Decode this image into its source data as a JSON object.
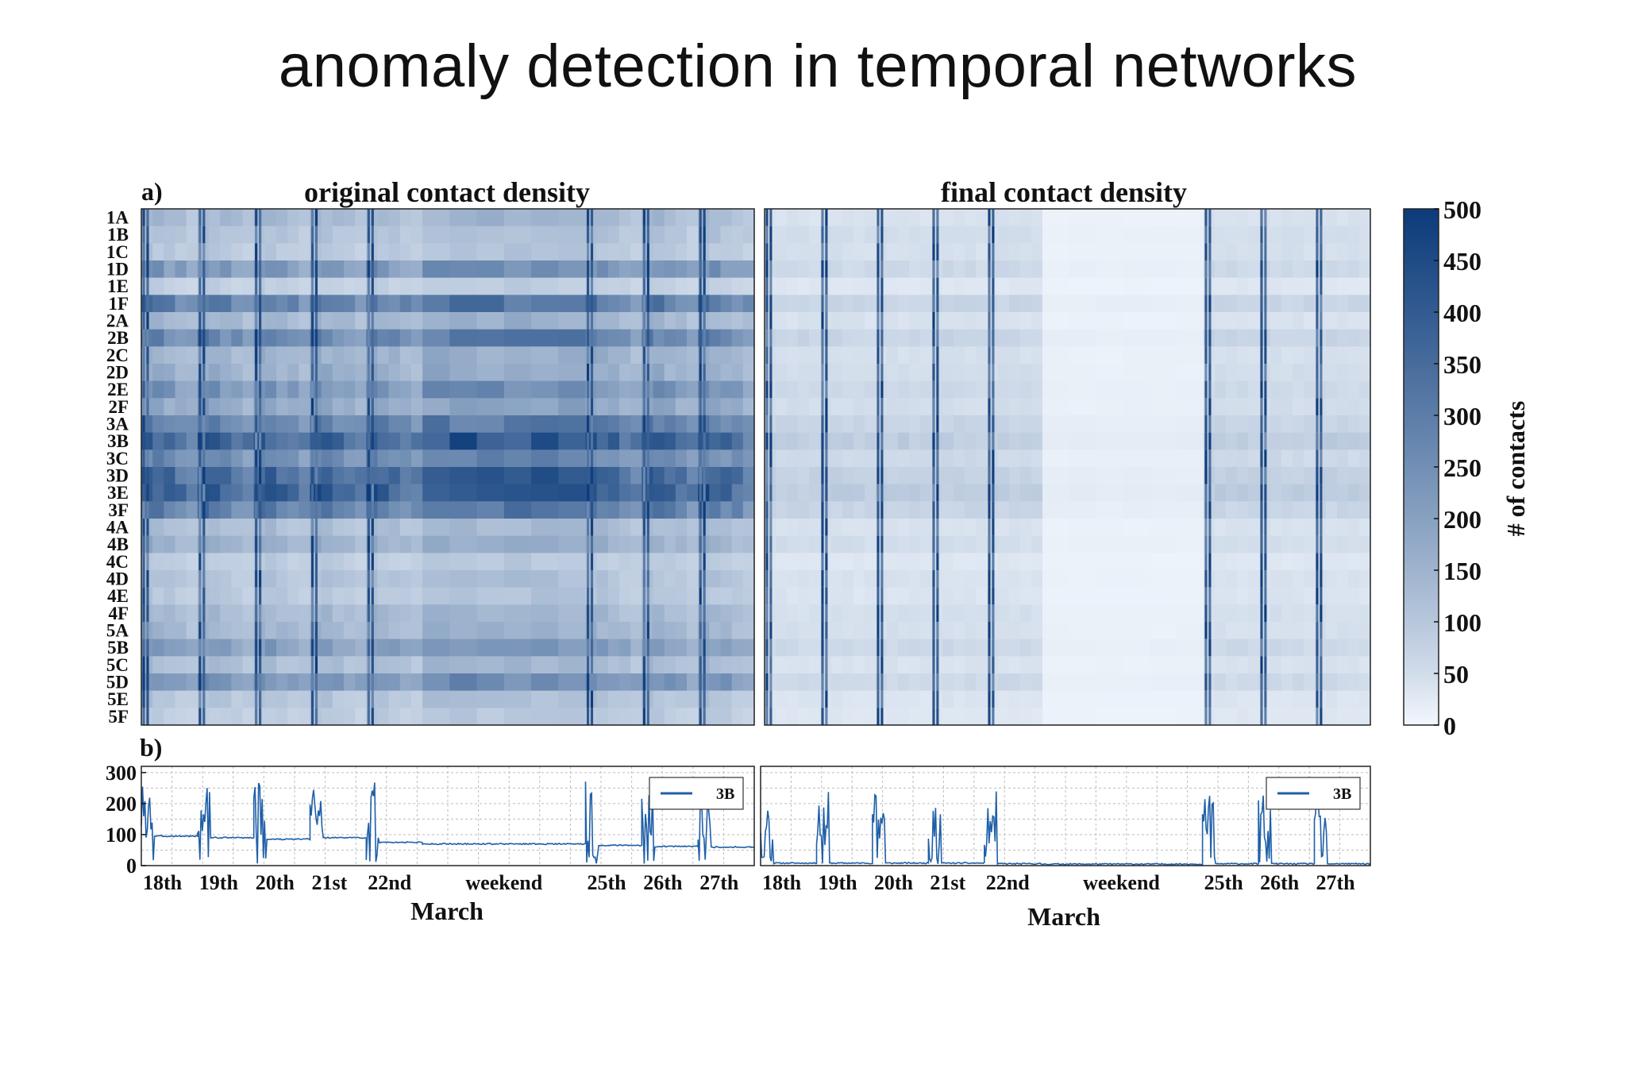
{
  "slide": {
    "title": "anomaly detection in temporal networks"
  },
  "panels": {
    "a_label": "a)",
    "b_label": "b)",
    "left_title": "original contact density",
    "right_title": "final contact density"
  },
  "colors": {
    "scale_low": "#f2f7fd",
    "scale_high": "#0b3b7a",
    "line": "#1f5fa8",
    "grid": "#bdbdbd",
    "frame": "#222222"
  },
  "chart_data": [
    {
      "type": "heatmap",
      "title": "original contact density",
      "rows": [
        "1A",
        "1B",
        "1C",
        "1D",
        "1E",
        "1F",
        "2A",
        "2B",
        "2C",
        "2D",
        "2E",
        "2F",
        "3A",
        "3B",
        "3C",
        "3D",
        "3E",
        "3F",
        "4A",
        "4B",
        "4C",
        "4D",
        "4E",
        "4F",
        "5A",
        "5B",
        "5C",
        "5D",
        "5E",
        "5F"
      ],
      "segments": [
        {
          "label": "18th",
          "kind": "day",
          "span": 1.0
        },
        {
          "label": "19th",
          "kind": "day",
          "span": 1.0
        },
        {
          "label": "20th",
          "kind": "day",
          "span": 1.0
        },
        {
          "label": "21st",
          "kind": "day",
          "span": 1.0
        },
        {
          "label": "22nd",
          "kind": "day",
          "span": 1.0
        },
        {
          "label": "weekend",
          "kind": "weekend",
          "span": 2.9
        },
        {
          "label": "25th",
          "kind": "day",
          "span": 1.0
        },
        {
          "label": "26th",
          "kind": "day",
          "span": 1.0
        },
        {
          "label": "27th",
          "kind": "day",
          "span": 1.0
        }
      ],
      "row_levels": [
        150,
        120,
        110,
        250,
        90,
        330,
        160,
        300,
        170,
        180,
        260,
        200,
        310,
        420,
        290,
        400,
        430,
        330,
        140,
        170,
        100,
        120,
        110,
        150,
        160,
        230,
        140,
        260,
        120,
        100
      ],
      "weekend_factor": 1.0,
      "decay": 0.35,
      "colorbar": {
        "min": 0,
        "max": 500,
        "ticks": [
          0,
          50,
          100,
          150,
          200,
          250,
          300,
          350,
          400,
          450,
          500
        ],
        "label": "# of contacts"
      }
    },
    {
      "type": "heatmap",
      "title": "final contact density",
      "rows": [
        "1A",
        "1B",
        "1C",
        "1D",
        "1E",
        "1F",
        "2A",
        "2B",
        "2C",
        "2D",
        "2E",
        "2F",
        "3A",
        "3B",
        "3C",
        "3D",
        "3E",
        "3F",
        "4A",
        "4B",
        "4C",
        "4D",
        "4E",
        "4F",
        "5A",
        "5B",
        "5C",
        "5D",
        "5E",
        "5F"
      ],
      "segments": [
        {
          "label": "18th",
          "kind": "day",
          "span": 1.0
        },
        {
          "label": "19th",
          "kind": "day",
          "span": 1.0
        },
        {
          "label": "20th",
          "kind": "day",
          "span": 1.0
        },
        {
          "label": "21st",
          "kind": "day",
          "span": 1.0
        },
        {
          "label": "22nd",
          "kind": "day",
          "span": 1.0
        },
        {
          "label": "weekend",
          "kind": "weekend",
          "span": 2.9
        },
        {
          "label": "25th",
          "kind": "day",
          "span": 1.0
        },
        {
          "label": "26th",
          "kind": "day",
          "span": 1.0
        },
        {
          "label": "27th",
          "kind": "day",
          "span": 1.0
        }
      ],
      "row_levels": [
        40,
        50,
        45,
        60,
        30,
        70,
        40,
        70,
        45,
        50,
        60,
        50,
        70,
        90,
        60,
        80,
        90,
        70,
        40,
        50,
        30,
        40,
        35,
        45,
        45,
        60,
        40,
        60,
        35,
        30
      ],
      "weekend_factor": 0.2,
      "decay": 0.1
    },
    {
      "type": "line",
      "series": [
        {
          "name": "3B"
        }
      ],
      "xlabel": "March",
      "x_tick_labels": [
        "18th",
        "19th",
        "20th",
        "21st",
        "22nd",
        "weekend",
        "25th",
        "26th",
        "27th"
      ],
      "y_ticks": [
        0,
        100,
        200,
        300
      ],
      "ylim": [
        0,
        320
      ],
      "baseline_per_day": [
        95,
        90,
        85,
        90,
        75,
        70,
        65,
        62,
        60
      ],
      "peak": 260,
      "grid": true,
      "legend": "top-right"
    },
    {
      "type": "line",
      "series": [
        {
          "name": "3B"
        }
      ],
      "xlabel": "March",
      "x_tick_labels": [
        "18th",
        "19th",
        "20th",
        "21st",
        "22nd",
        "weekend",
        "25th",
        "26th",
        "27th"
      ],
      "y_ticks": [],
      "ylim": [
        0,
        320
      ],
      "baseline_per_day": [
        8,
        8,
        8,
        8,
        6,
        5,
        6,
        6,
        6
      ],
      "peak": 240,
      "grid": true,
      "legend": "top-right"
    }
  ]
}
